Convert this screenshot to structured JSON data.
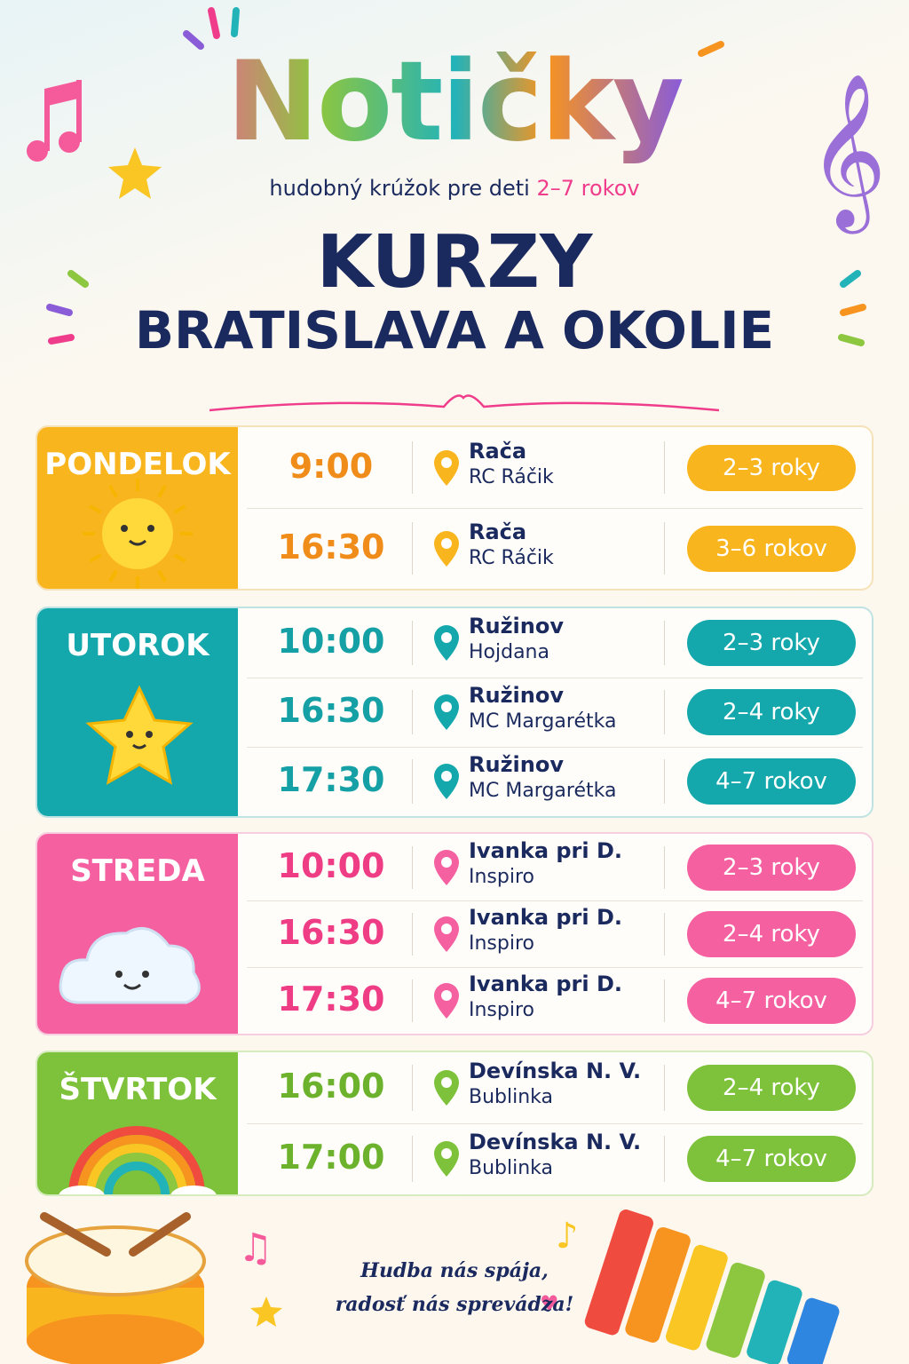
{
  "header": {
    "title": "Notičky",
    "subtitle": "hudobný krúžok pre deti",
    "subtitle_ages": "2–7 rokov"
  },
  "heading": [
    "KURZY",
    "BRATISLAVA A OKOLIE"
  ],
  "days": [
    {
      "name": "PONDELOK",
      "sessions": [
        {
          "time": "9:00",
          "place": "Rača",
          "venue": "RC Ráčik",
          "age": "2–3 roky"
        },
        {
          "time": "16:30",
          "place": "Rača",
          "venue": "RC Ráčik",
          "age": "3–6 rokov"
        }
      ]
    },
    {
      "name": "UTOROK",
      "sessions": [
        {
          "time": "10:00",
          "place": "Ružinov",
          "venue": "Hojdana",
          "age": "2–3 roky"
        },
        {
          "time": "16:30",
          "place": "Ružinov",
          "venue": "MC Margarétka",
          "age": "2–4 roky"
        },
        {
          "time": "17:30",
          "place": "Ružinov",
          "venue": "MC Margarétka",
          "age": "4–7 rokov"
        }
      ]
    },
    {
      "name": "STREDA",
      "sessions": [
        {
          "time": "10:00",
          "place": "Ivanka pri D.",
          "venue": "Inspiro",
          "age": "2–3 roky"
        },
        {
          "time": "16:30",
          "place": "Ivanka pri D.",
          "venue": "Inspiro",
          "age": "2–4 roky"
        },
        {
          "time": "17:30",
          "place": "Ivanka pri D.",
          "venue": "Inspiro",
          "age": "4–7 rokov"
        }
      ]
    },
    {
      "name": "ŠTVRTOK",
      "sessions": [
        {
          "time": "16:00",
          "place": "Devínska N. V.",
          "venue": "Bublinka",
          "age": "2–4 roky"
        },
        {
          "time": "17:00",
          "place": "Devínska N. V.",
          "venue": "Bublinka",
          "age": "4–7 rokov"
        }
      ]
    }
  ],
  "footer": [
    "Hudba nás spája,",
    "radosť nás sprevádza!"
  ]
}
